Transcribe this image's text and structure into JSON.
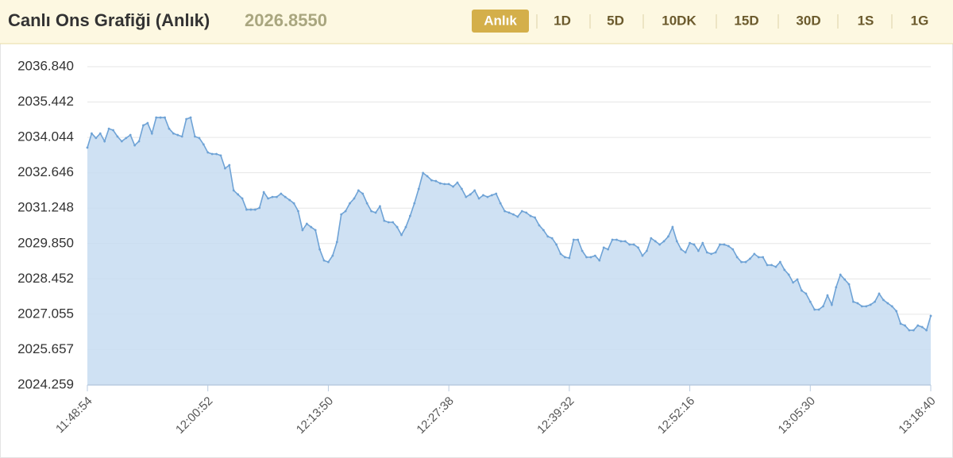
{
  "header": {
    "title": "Canlı Ons Grafiği (Anlık)",
    "price": "2026.8550",
    "periods": [
      "Anlık",
      "1D",
      "5D",
      "10DK",
      "15D",
      "30D",
      "1S",
      "1G"
    ],
    "active_period": 0
  },
  "chart_data": {
    "type": "area",
    "color": "#6fa3d6",
    "fill_color": "#c7dcf1",
    "grid": true,
    "values": [
      2033.64,
      2034.2,
      2034.02,
      2034.2,
      2033.89,
      2034.39,
      2034.33,
      2034.08,
      2033.89,
      2034.02,
      2034.14,
      2033.73,
      2033.89,
      2034.52,
      2034.61,
      2034.2,
      2034.83,
      2034.83,
      2034.83,
      2034.39,
      2034.2,
      2034.14,
      2034.08,
      2034.77,
      2034.83,
      2034.08,
      2034.02,
      2033.77,
      2033.45,
      2033.39,
      2033.39,
      2033.33,
      2032.82,
      2032.95,
      2031.95,
      2031.79,
      2031.63,
      2031.19,
      2031.19,
      2031.19,
      2031.26,
      2031.88,
      2031.63,
      2031.69,
      2031.69,
      2031.82,
      2031.69,
      2031.57,
      2031.44,
      2031.13,
      2030.38,
      2030.63,
      2030.5,
      2030.38,
      2029.62,
      2029.18,
      2029.12,
      2029.37,
      2029.91,
      2031.0,
      2031.13,
      2031.44,
      2031.63,
      2031.95,
      2031.82,
      2031.44,
      2031.13,
      2031.07,
      2031.32,
      2030.75,
      2030.69,
      2030.69,
      2030.5,
      2030.19,
      2030.5,
      2030.94,
      2031.44,
      2032.01,
      2032.64,
      2032.51,
      2032.35,
      2032.32,
      2032.23,
      2032.2,
      2032.2,
      2032.1,
      2032.26,
      2032.01,
      2031.69,
      2031.79,
      2031.95,
      2031.63,
      2031.76,
      2031.69,
      2031.76,
      2031.82,
      2031.44,
      2031.13,
      2031.07,
      2031.0,
      2030.91,
      2031.13,
      2031.07,
      2030.94,
      2030.88,
      2030.57,
      2030.38,
      2030.13,
      2030.06,
      2029.81,
      2029.44,
      2029.31,
      2029.28,
      2030.0,
      2030.0,
      2029.56,
      2029.31,
      2029.31,
      2029.37,
      2029.18,
      2029.69,
      2029.62,
      2030.0,
      2030.0,
      2029.94,
      2029.94,
      2029.81,
      2029.81,
      2029.69,
      2029.37,
      2029.56,
      2030.06,
      2029.94,
      2029.81,
      2029.94,
      2030.13,
      2030.5,
      2029.94,
      2029.62,
      2029.5,
      2029.87,
      2029.81,
      2029.56,
      2029.87,
      2029.5,
      2029.44,
      2029.5,
      2029.81,
      2029.81,
      2029.75,
      2029.62,
      2029.31,
      2029.12,
      2029.12,
      2029.25,
      2029.44,
      2029.31,
      2029.31,
      2029.0,
      2029.0,
      2028.93,
      2029.12,
      2028.81,
      2028.62,
      2028.31,
      2028.43,
      2027.99,
      2027.87,
      2027.55,
      2027.24,
      2027.24,
      2027.37,
      2027.8,
      2027.43,
      2028.12,
      2028.62,
      2028.43,
      2028.24,
      2027.55,
      2027.49,
      2027.37,
      2027.37,
      2027.43,
      2027.55,
      2027.87,
      2027.62,
      2027.49,
      2027.37,
      2027.18,
      2026.68,
      2026.61,
      2026.42,
      2026.42,
      2026.61,
      2026.55,
      2026.42,
      2026.99
    ],
    "xlim": [
      0,
      196
    ],
    "xticks": [
      {
        "value": 0,
        "label": "11:48:54"
      },
      {
        "value": 28,
        "label": "12:00:52"
      },
      {
        "value": 56,
        "label": "12:13:50"
      },
      {
        "value": 84,
        "label": "12:27:38"
      },
      {
        "value": 112,
        "label": "12:39:32"
      },
      {
        "value": 140,
        "label": "12:52:16"
      },
      {
        "value": 168,
        "label": "13:05:30"
      },
      {
        "value": 196,
        "label": "13:18:40"
      }
    ],
    "ylim": [
      2024.259,
      2036.84
    ],
    "yticks": [
      2024.259,
      2025.657,
      2027.055,
      2028.452,
      {
        "value": 2029.85,
        "label": "2029.850"
      },
      2031.248,
      2032.646,
      2034.044,
      2035.442,
      {
        "value": 2036.84,
        "label": "2036.840"
      }
    ]
  }
}
